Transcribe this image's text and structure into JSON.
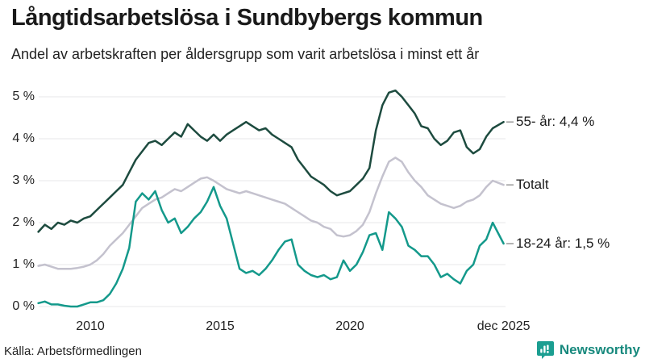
{
  "header": {
    "title": "Långtidsarbetslösa i Sundbybergs kommun",
    "subtitle": "Andel av arbetskraften per åldersgrupp som varit arbetslösa i minst ett år"
  },
  "footer": {
    "source": "Källa: Arbetsförmedlingen",
    "brand": "Newsworthy"
  },
  "colors": {
    "series_55": "#1d4b3f",
    "series_totalt": "#c4c2ce",
    "series_18_24": "#14998b",
    "gridline": "#e7e7ea",
    "label_connector": "#999999",
    "title_text": "#1a1a1a",
    "brand_teal": "#17897d",
    "logo_fill": "#1b9e91"
  },
  "chart_data": {
    "type": "line",
    "title": "Långtidsarbetslösa i Sundbybergs kommun",
    "subtitle": "Andel av arbetskraften per åldersgrupp som varit arbetslösa i minst ett år",
    "unit": "% av arbetskraften",
    "grid": true,
    "legend_position": "right-end-labels",
    "ylim": [
      0,
      5
    ],
    "yticks": [
      "0 %",
      "1 %",
      "2 %",
      "3 %",
      "4 %",
      "5 %"
    ],
    "xticks": [
      {
        "label": "2010",
        "year": 2010
      },
      {
        "label": "2015",
        "year": 2015
      },
      {
        "label": "2020",
        "year": 2020
      },
      {
        "label": "dec 2025",
        "year": 2025.92
      }
    ],
    "x_start_year": 2008,
    "x_step_years": 0.25,
    "x_last_point_year": 2025.92,
    "series": [
      {
        "name": "55- år",
        "label": "55- år: 4,4 %",
        "color": "#1d4b3f",
        "values": [
          1.78,
          1.95,
          1.85,
          2.0,
          1.95,
          2.05,
          2.0,
          2.1,
          2.15,
          2.3,
          2.45,
          2.6,
          2.75,
          2.9,
          3.2,
          3.5,
          3.7,
          3.9,
          3.95,
          3.85,
          4.0,
          4.15,
          4.05,
          4.35,
          4.2,
          4.05,
          3.95,
          4.1,
          3.95,
          4.1,
          4.2,
          4.3,
          4.4,
          4.3,
          4.2,
          4.25,
          4.1,
          4.0,
          3.9,
          3.8,
          3.5,
          3.3,
          3.1,
          3.0,
          2.9,
          2.75,
          2.65,
          2.7,
          2.75,
          2.9,
          3.05,
          3.3,
          4.2,
          4.8,
          5.1,
          5.15,
          5.0,
          4.8,
          4.6,
          4.3,
          4.25,
          4.0,
          3.85,
          3.95,
          4.15,
          4.2,
          3.8,
          3.65,
          3.75,
          4.05,
          4.25,
          4.4
        ]
      },
      {
        "name": "Totalt",
        "label": "Totalt",
        "color": "#c4c2ce",
        "values": [
          0.97,
          1.0,
          0.95,
          0.9,
          0.9,
          0.9,
          0.92,
          0.95,
          1.0,
          1.1,
          1.25,
          1.45,
          1.6,
          1.75,
          1.95,
          2.15,
          2.35,
          2.45,
          2.55,
          2.6,
          2.7,
          2.8,
          2.75,
          2.85,
          2.95,
          3.05,
          3.08,
          3.0,
          2.9,
          2.8,
          2.75,
          2.7,
          2.75,
          2.7,
          2.65,
          2.6,
          2.55,
          2.5,
          2.45,
          2.35,
          2.25,
          2.15,
          2.05,
          2.0,
          1.9,
          1.85,
          1.7,
          1.67,
          1.7,
          1.8,
          1.95,
          2.25,
          2.7,
          3.1,
          3.45,
          3.55,
          3.45,
          3.2,
          3.0,
          2.85,
          2.65,
          2.55,
          2.45,
          2.4,
          2.35,
          2.4,
          2.5,
          2.55,
          2.65,
          2.85,
          3.0,
          2.9
        ]
      },
      {
        "name": "18-24 år",
        "label": "18-24 år: 1,5 %",
        "color": "#14998b",
        "values": [
          0.08,
          0.12,
          0.05,
          0.05,
          0.02,
          0.0,
          0.0,
          0.05,
          0.1,
          0.1,
          0.15,
          0.3,
          0.55,
          0.9,
          1.4,
          2.5,
          2.7,
          2.55,
          2.75,
          2.3,
          2.0,
          2.1,
          1.75,
          1.9,
          2.1,
          2.25,
          2.5,
          2.85,
          2.4,
          2.1,
          1.5,
          0.9,
          0.8,
          0.85,
          0.75,
          0.9,
          1.1,
          1.35,
          1.55,
          1.6,
          1.0,
          0.85,
          0.75,
          0.7,
          0.75,
          0.65,
          0.7,
          1.1,
          0.85,
          1.0,
          1.3,
          1.7,
          1.75,
          1.35,
          2.25,
          2.1,
          1.9,
          1.45,
          1.35,
          1.2,
          1.2,
          1.0,
          0.7,
          0.78,
          0.65,
          0.55,
          0.85,
          1.0,
          1.45,
          1.6,
          2.0,
          1.5
        ]
      }
    ]
  }
}
